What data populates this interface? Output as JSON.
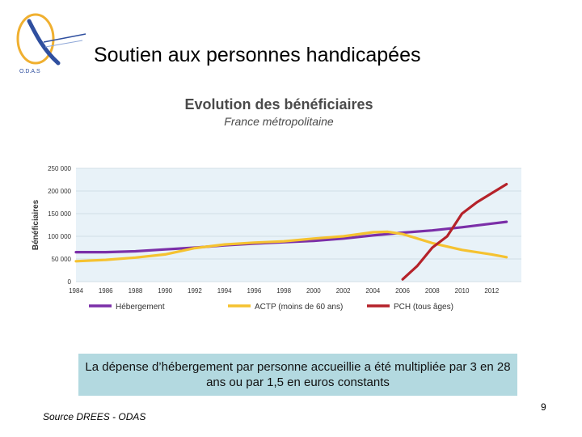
{
  "logo": {
    "text": "O.D.A.S"
  },
  "slide": {
    "title": "Soutien aux personnes handicapées"
  },
  "callout": {
    "text": "La dépense d’hébergement par personne accueillie a été multipliée par 3 en 28 ans ou par 1,5 en euros constants"
  },
  "footer": {
    "source": "Source DREES - ODAS",
    "page_number": "9"
  },
  "chart_data": {
    "type": "line",
    "title": "Evolution des bénéficiaires",
    "subtitle": "France métropolitaine",
    "xlabel": "",
    "ylabel": "Bénéficiaires",
    "xlim": [
      1984,
      2014
    ],
    "ylim": [
      0,
      250000
    ],
    "x_ticks": [
      1984,
      1986,
      1988,
      1990,
      1992,
      1994,
      1996,
      1998,
      2000,
      2002,
      2004,
      2006,
      2008,
      2010,
      2012
    ],
    "x_tick_labels": [
      "1984",
      "1986",
      "1988",
      "1990",
      "1992",
      "1994",
      "1996",
      "1998",
      "2000",
      "2002",
      "2004",
      "2006",
      "2008",
      "2010",
      "2012"
    ],
    "y_ticks": [
      0,
      50000,
      100000,
      150000,
      200000,
      250000
    ],
    "y_tick_labels": [
      "0",
      "50 000",
      "100 000",
      "150 000",
      "200 000",
      "250 000"
    ],
    "grid": "horizontal",
    "legend_position": "bottom",
    "series": [
      {
        "name": "Hébergement",
        "color": "#7b2fa8",
        "points": [
          [
            1984,
            65000
          ],
          [
            1986,
            65000
          ],
          [
            1988,
            67000
          ],
          [
            1990,
            71000
          ],
          [
            1992,
            75000
          ],
          [
            1994,
            80000
          ],
          [
            1996,
            84000
          ],
          [
            1998,
            87000
          ],
          [
            2000,
            90000
          ],
          [
            2002,
            95000
          ],
          [
            2004,
            102000
          ],
          [
            2006,
            108000
          ],
          [
            2008,
            113000
          ],
          [
            2010,
            120000
          ],
          [
            2012,
            128000
          ],
          [
            2013,
            132000
          ]
        ]
      },
      {
        "name": "ACTP (moins de 60 ans)",
        "color": "#f5c230",
        "points": [
          [
            1984,
            45000
          ],
          [
            1986,
            48000
          ],
          [
            1988,
            53000
          ],
          [
            1990,
            60000
          ],
          [
            1992,
            74000
          ],
          [
            1994,
            82000
          ],
          [
            1996,
            86000
          ],
          [
            1998,
            89000
          ],
          [
            2000,
            95000
          ],
          [
            2002,
            100000
          ],
          [
            2004,
            109000
          ],
          [
            2005,
            110000
          ],
          [
            2006,
            105000
          ],
          [
            2008,
            85000
          ],
          [
            2010,
            70000
          ],
          [
            2012,
            60000
          ],
          [
            2013,
            54000
          ]
        ]
      },
      {
        "name": "PCH (tous âges)",
        "color": "#b5222a",
        "points": [
          [
            2006,
            5000
          ],
          [
            2007,
            35000
          ],
          [
            2008,
            75000
          ],
          [
            2009,
            100000
          ],
          [
            2010,
            150000
          ],
          [
            2011,
            175000
          ],
          [
            2012,
            195000
          ],
          [
            2013,
            215000
          ]
        ]
      }
    ]
  }
}
